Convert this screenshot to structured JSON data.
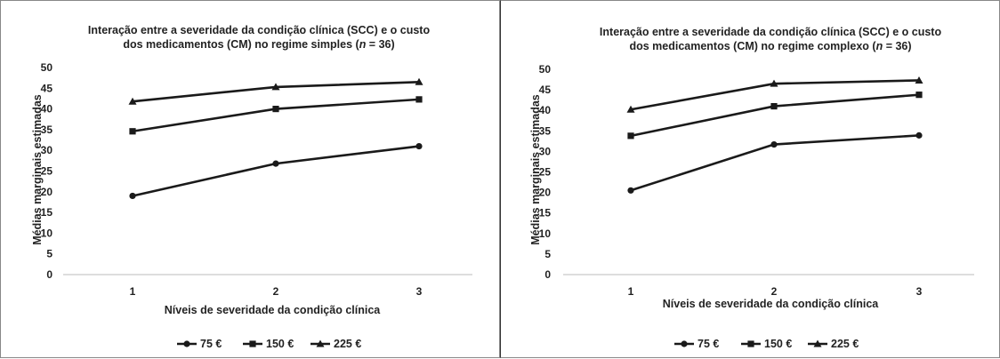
{
  "charts": [
    {
      "title_lines": [
        [
          "Interação entre a severidade da condição clínica (SCC) e o custo"
        ],
        [
          "dos medicamentos (CM)  no regime simples (",
          "n",
          " = 36)"
        ]
      ],
      "chart_data": {
        "type": "line",
        "categories": [
          "1",
          "2",
          "3"
        ],
        "series": [
          {
            "name": "75 €",
            "marker": "circle",
            "values": [
              19.0,
              26.8,
              31.0
            ]
          },
          {
            "name": "150 €",
            "marker": "square",
            "values": [
              34.6,
              40.0,
              42.3
            ]
          },
          {
            "name": "225 €",
            "marker": "triangle",
            "values": [
              41.8,
              45.3,
              46.5
            ]
          }
        ],
        "xlabel": "Níveis de severidade da condição clínica",
        "ylabel": "Médias marginais estimadas",
        "ylim": [
          0,
          50
        ],
        "yticks": [
          "0",
          "5",
          "10",
          "15",
          "20",
          "25",
          "30",
          "35",
          "40",
          "45",
          "50"
        ],
        "grid": false,
        "legend": "bottom",
        "line_color": "#1a1a1a"
      }
    },
    {
      "title_lines": [
        [
          "Interação entre a severidade da condição clínica (SCC) e o custo"
        ],
        [
          "dos medicamentos (CM) no regime complexo (",
          "n",
          " = 36)"
        ]
      ],
      "chart_data": {
        "type": "line",
        "categories": [
          "1",
          "2",
          "3"
        ],
        "series": [
          {
            "name": "75 €",
            "marker": "circle",
            "values": [
              20.5,
              31.7,
              33.9
            ]
          },
          {
            "name": "150 €",
            "marker": "square",
            "values": [
              33.8,
              41.0,
              43.8
            ]
          },
          {
            "name": "225 €",
            "marker": "triangle",
            "values": [
              40.2,
              46.5,
              47.3
            ]
          }
        ],
        "xlabel": "Níveis de severidade da condição clínica",
        "ylabel": "Médias marginais estimadas",
        "ylim": [
          0,
          50
        ],
        "yticks": [
          "0",
          "5",
          "10",
          "15",
          "20",
          "25",
          "30",
          "35",
          "40",
          "45",
          "50"
        ],
        "grid": false,
        "legend": "bottom",
        "line_color": "#1a1a1a"
      }
    }
  ]
}
